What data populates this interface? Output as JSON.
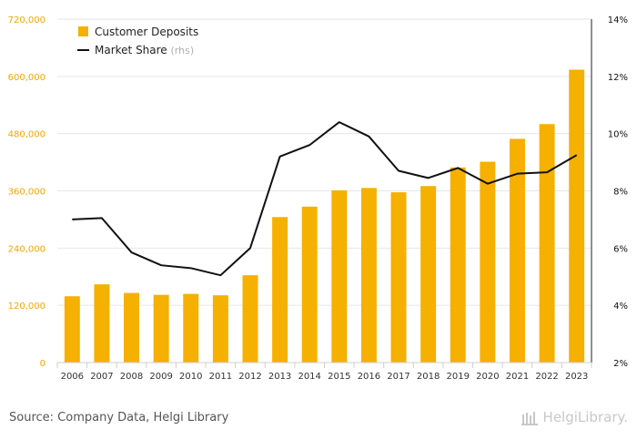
{
  "chart_data": {
    "type": "bar+line",
    "categories": [
      "2006",
      "2007",
      "2008",
      "2009",
      "2010",
      "2011",
      "2012",
      "2013",
      "2014",
      "2015",
      "2016",
      "2017",
      "2018",
      "2019",
      "2020",
      "2021",
      "2022",
      "2023"
    ],
    "series": [
      {
        "name": "Customer Deposits",
        "type": "bar",
        "axis": "left",
        "color": "#f5b000",
        "values": [
          139000,
          164000,
          146000,
          142000,
          144000,
          141000,
          183000,
          305000,
          327000,
          361000,
          366000,
          357000,
          370000,
          409000,
          421000,
          469000,
          500000,
          614000
        ]
      },
      {
        "name": "Market Share",
        "legend_suffix": "(rhs)",
        "type": "line",
        "axis": "right",
        "color": "#111111",
        "values": [
          7.0,
          7.05,
          5.85,
          5.4,
          5.3,
          5.05,
          6.0,
          9.2,
          9.6,
          10.4,
          9.9,
          8.7,
          8.45,
          8.8,
          8.25,
          8.6,
          8.65,
          9.25
        ]
      }
    ],
    "y_left": {
      "min": 0,
      "max": 720000,
      "ticks": [
        "0",
        "120,000",
        "240,000",
        "360,000",
        "480,000",
        "600,000",
        "720,000"
      ]
    },
    "y_right": {
      "min": 2,
      "max": 14,
      "ticks": [
        "2%",
        "4%",
        "6%",
        "8%",
        "10%",
        "12%",
        "14%"
      ]
    },
    "grid": true,
    "legend_position": "top-left"
  },
  "footer": {
    "source": "Source: Company Data, Helgi Library",
    "brand": "HelgiLibrary."
  },
  "colors": {
    "bar": "#f5b000",
    "line": "#111111",
    "left_axis_text": "#f5a500",
    "grid": "#e6e6e6"
  }
}
